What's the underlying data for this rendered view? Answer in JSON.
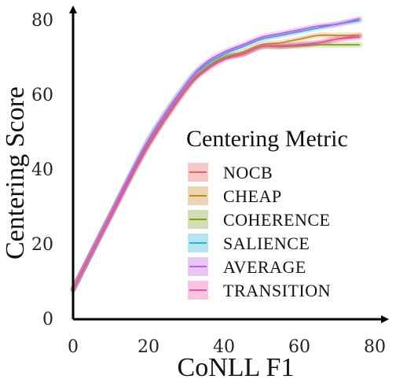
{
  "chart_data": {
    "type": "line",
    "xlabel": "CoNLL F1",
    "ylabel": "Centering Score",
    "xlim": [
      0,
      80
    ],
    "ylim": [
      0,
      80
    ],
    "xticks": [
      "0",
      "20",
      "40",
      "60",
      "80"
    ],
    "yticks": [
      "0",
      "20",
      "40",
      "60",
      "80"
    ],
    "legend": {
      "title": "Centering Metric",
      "position": "right"
    },
    "series": [
      {
        "name": "NOCB",
        "color": "#e8625e",
        "x": [
          0,
          10,
          20,
          30,
          35,
          40,
          45,
          50,
          55,
          60,
          65,
          70,
          76
        ],
        "y": [
          8,
          28,
          47,
          62,
          67,
          70,
          71,
          73,
          73,
          73.5,
          74,
          75,
          76
        ]
      },
      {
        "name": "CHEAP",
        "color": "#c7871f",
        "x": [
          0,
          10,
          20,
          30,
          35,
          40,
          45,
          50,
          55,
          60,
          65,
          70,
          76
        ],
        "y": [
          8,
          28,
          47,
          62,
          67,
          70,
          71.5,
          73.5,
          74,
          75,
          76,
          76,
          76
        ]
      },
      {
        "name": "COHERENCE",
        "color": "#7fa01f",
        "x": [
          0,
          10,
          20,
          30,
          35,
          40,
          45,
          50,
          55,
          60,
          65,
          70,
          76
        ],
        "y": [
          8,
          28,
          47,
          62,
          67,
          70,
          71,
          73,
          73,
          73.2,
          73.5,
          73.5,
          73.5
        ]
      },
      {
        "name": "SALIENCE",
        "color": "#25b2d8",
        "x": [
          0,
          10,
          20,
          30,
          35,
          40,
          45,
          50,
          55,
          60,
          65,
          70,
          76
        ],
        "y": [
          8,
          28,
          48,
          63,
          68,
          71,
          73,
          75,
          76,
          77,
          78,
          79,
          80
        ]
      },
      {
        "name": "AVERAGE",
        "color": "#c25ce8",
        "x": [
          0,
          10,
          20,
          30,
          35,
          40,
          45,
          50,
          55,
          60,
          65,
          70,
          76
        ],
        "y": [
          8,
          28,
          48,
          63,
          68.5,
          71.5,
          73.5,
          75.5,
          76.5,
          77.5,
          78.5,
          79,
          80.5
        ]
      },
      {
        "name": "TRANSITION",
        "color": "#ea4fa8",
        "x": [
          0,
          10,
          20,
          30,
          35,
          40,
          45,
          50,
          55,
          60,
          65,
          70,
          76
        ],
        "y": [
          8,
          27.5,
          46.5,
          61.5,
          66.5,
          69.5,
          71,
          73,
          73.2,
          73.5,
          74,
          75,
          75.5
        ]
      }
    ]
  }
}
